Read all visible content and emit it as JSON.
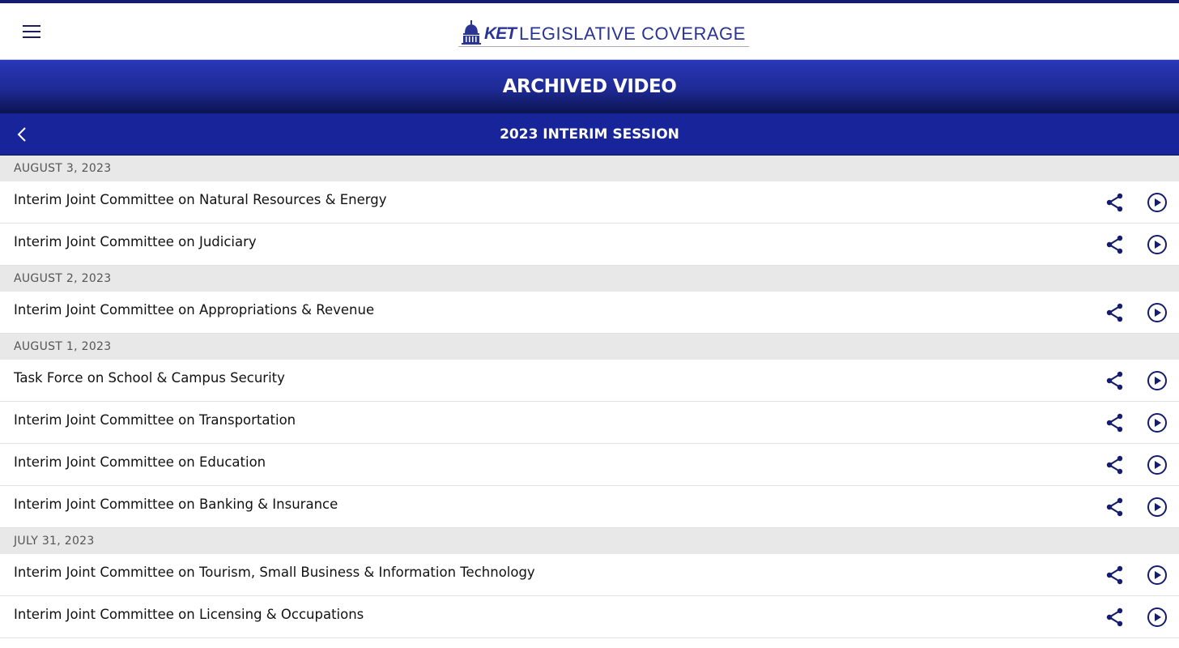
{
  "header": {
    "logo_brand": "KET",
    "logo_text": "LEGISLATIVE COVERAGE"
  },
  "page_title": "ARCHIVED VIDEO",
  "session_title": "2023 INTERIM SESSION",
  "accent": "#17249a",
  "groups": [
    {
      "date": "AUGUST 3, 2023",
      "items": [
        "Interim Joint Committee on Natural Resources & Energy",
        "Interim Joint Committee on Judiciary"
      ]
    },
    {
      "date": "AUGUST 2, 2023",
      "items": [
        "Interim Joint Committee on Appropriations & Revenue"
      ]
    },
    {
      "date": "AUGUST 1, 2023",
      "items": [
        "Task Force on School & Campus Security",
        "Interim Joint Committee on Transportation",
        "Interim Joint Committee on Education",
        "Interim Joint Committee on Banking & Insurance"
      ]
    },
    {
      "date": "JULY 31, 2023",
      "items": [
        "Interim Joint Committee on Tourism, Small Business & Information Technology",
        "Interim Joint Committee on Licensing & Occupations"
      ]
    }
  ]
}
